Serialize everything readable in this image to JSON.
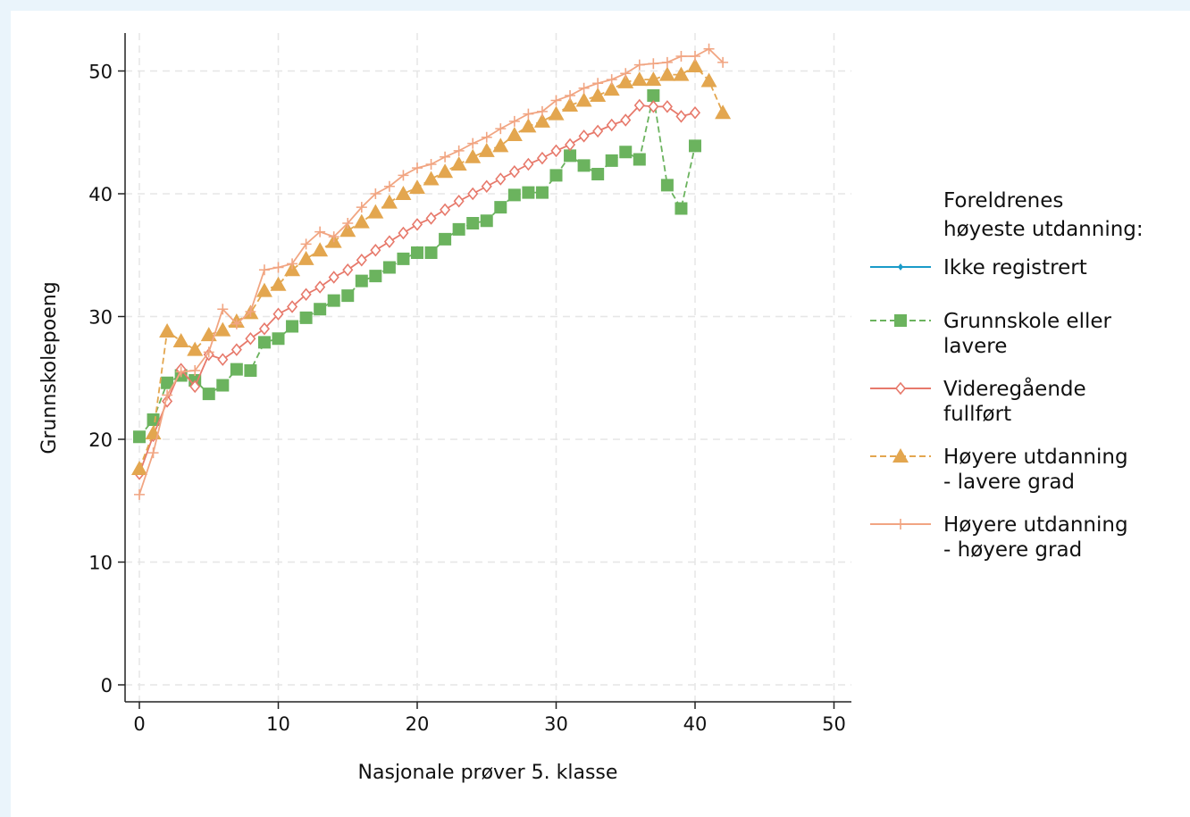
{
  "chart_data": {
    "type": "line",
    "xlabel": "Nasjonale prøver 5. klasse",
    "ylabel": "Grunnskolepoeng",
    "xlim": [
      0,
      50
    ],
    "ylim": [
      0,
      52
    ],
    "xticks": [
      "0",
      "10",
      "20",
      "30",
      "40",
      "50"
    ],
    "yticks": [
      "0",
      "10",
      "20",
      "30",
      "40",
      "50"
    ],
    "grid": true,
    "legend_position": "right",
    "legend_title_lines": [
      "Foreldrenes",
      "høyeste utdanning:"
    ],
    "series": [
      {
        "name": "Ikke registrert",
        "label_lines": [
          "Ikke registrert"
        ],
        "color": "#1a9bc9",
        "marker": "diamond",
        "dash": "solid",
        "x": [],
        "y": []
      },
      {
        "name": "Grunnskole eller lavere",
        "label_lines": [
          "Grunnskole eller",
          "lavere"
        ],
        "color": "#6bb35e",
        "marker": "square",
        "dash": "dashed",
        "x": [
          0,
          1,
          2,
          3,
          4,
          5,
          6,
          7,
          8,
          9,
          10,
          11,
          12,
          13,
          14,
          15,
          16,
          17,
          18,
          19,
          20,
          21,
          22,
          23,
          24,
          25,
          26,
          27,
          28,
          29,
          30,
          31,
          32,
          33,
          34,
          35,
          36,
          37,
          38,
          39,
          40
        ],
        "y": [
          20.2,
          21.6,
          24.6,
          25.2,
          24.8,
          23.7,
          24.4,
          25.7,
          25.6,
          27.9,
          28.2,
          29.2,
          29.9,
          30.6,
          31.3,
          31.7,
          32.9,
          33.3,
          34.0,
          34.7,
          35.2,
          35.2,
          36.3,
          37.1,
          37.6,
          37.8,
          38.9,
          39.9,
          40.1,
          40.1,
          41.5,
          43.1,
          42.3,
          41.6,
          42.7,
          43.4,
          42.8,
          48.0,
          40.7,
          38.8,
          43.9
        ]
      },
      {
        "name": "Videregående fullført",
        "label_lines": [
          "Videregående",
          "fullført"
        ],
        "color": "#e7796b",
        "marker": "diamond-hollow",
        "dash": "solid",
        "x": [
          0,
          1,
          2,
          3,
          4,
          5,
          6,
          7,
          8,
          9,
          10,
          11,
          12,
          13,
          14,
          15,
          16,
          17,
          18,
          19,
          20,
          21,
          22,
          23,
          24,
          25,
          26,
          27,
          28,
          29,
          30,
          31,
          32,
          33,
          34,
          35,
          36,
          37,
          38,
          39,
          40
        ],
        "y": [
          17.2,
          20.3,
          23.1,
          25.7,
          24.3,
          26.9,
          26.5,
          27.3,
          28.2,
          29.0,
          30.2,
          30.8,
          31.8,
          32.4,
          33.2,
          33.8,
          34.6,
          35.4,
          36.1,
          36.8,
          37.5,
          38.0,
          38.7,
          39.4,
          40.0,
          40.6,
          41.2,
          41.8,
          42.4,
          42.9,
          43.5,
          44.0,
          44.7,
          45.1,
          45.6,
          46.0,
          47.2,
          47.1,
          47.1,
          46.3,
          46.6
        ]
      },
      {
        "name": "Høyere utdanning - lavere grad",
        "label_lines": [
          "Høyere utdanning",
          "- lavere grad"
        ],
        "color": "#e3a64f",
        "marker": "triangle",
        "dash": "dashed",
        "x": [
          0,
          1,
          2,
          3,
          4,
          5,
          6,
          7,
          8,
          9,
          10,
          11,
          12,
          13,
          14,
          15,
          16,
          17,
          18,
          19,
          20,
          21,
          22,
          23,
          24,
          25,
          26,
          27,
          28,
          29,
          30,
          31,
          32,
          33,
          34,
          35,
          36,
          37,
          38,
          39,
          40,
          41,
          42
        ],
        "y": [
          17.6,
          20.5,
          28.8,
          28.0,
          27.3,
          28.5,
          28.9,
          29.6,
          30.3,
          32.1,
          32.6,
          33.8,
          34.7,
          35.4,
          36.1,
          37.0,
          37.7,
          38.5,
          39.3,
          40.0,
          40.5,
          41.2,
          41.8,
          42.4,
          43.0,
          43.5,
          43.9,
          44.8,
          45.5,
          45.9,
          46.5,
          47.2,
          47.6,
          48.0,
          48.5,
          49.1,
          49.3,
          49.3,
          49.7,
          49.7,
          50.4,
          49.2,
          46.6
        ]
      },
      {
        "name": "Høyere utdanning - høyere grad",
        "label_lines": [
          "Høyere utdanning",
          "- høyere grad"
        ],
        "color": "#f1a582",
        "marker": "plus",
        "dash": "solid",
        "x": [
          0,
          1,
          2,
          3,
          4,
          5,
          6,
          7,
          8,
          9,
          10,
          11,
          12,
          13,
          14,
          15,
          16,
          17,
          18,
          19,
          20,
          21,
          22,
          23,
          24,
          25,
          26,
          27,
          28,
          29,
          30,
          31,
          32,
          33,
          34,
          35,
          36,
          37,
          38,
          39,
          40,
          41,
          42
        ],
        "y": [
          15.5,
          18.9,
          23.6,
          25.5,
          25.6,
          27.1,
          30.6,
          29.4,
          30.4,
          33.8,
          34.0,
          34.3,
          35.9,
          36.9,
          36.5,
          37.6,
          38.9,
          40.0,
          40.6,
          41.5,
          42.1,
          42.4,
          43.0,
          43.5,
          44.1,
          44.6,
          45.3,
          45.9,
          46.5,
          46.7,
          47.6,
          48.0,
          48.6,
          49.0,
          49.3,
          49.8,
          50.5,
          50.6,
          50.7,
          51.2,
          51.2,
          51.8,
          50.7
        ]
      }
    ]
  }
}
